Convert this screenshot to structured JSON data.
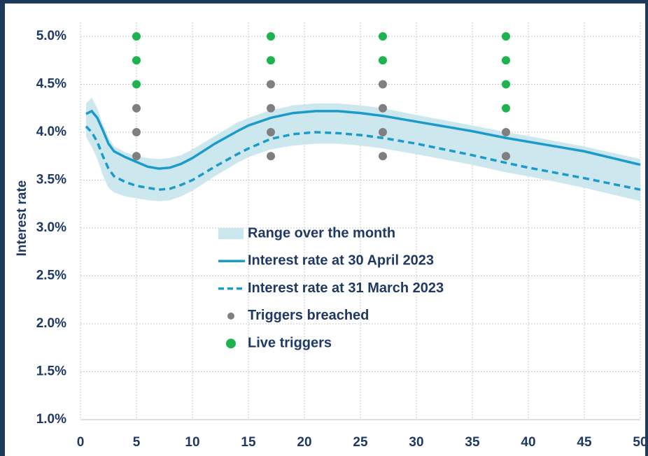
{
  "chart_data": {
    "type": "line",
    "y_label": "Interest rate",
    "xlim": [
      0,
      50
    ],
    "xticks": [
      0,
      5,
      10,
      15,
      20,
      25,
      30,
      35,
      40,
      45,
      50
    ],
    "ylim": [
      1.0,
      5.0
    ],
    "yticks": [
      {
        "value": 1.0,
        "label": "1.0%"
      },
      {
        "value": 1.5,
        "label": "1.5%"
      },
      {
        "value": 2.0,
        "label": "2.0%"
      },
      {
        "value": 2.5,
        "label": "2.5%"
      },
      {
        "value": 3.0,
        "label": "3.0%"
      },
      {
        "value": 3.5,
        "label": "3.5%"
      },
      {
        "value": 4.0,
        "label": "4.0%"
      },
      {
        "value": 4.5,
        "label": "4.5%"
      },
      {
        "value": 5.0,
        "label": "5.0%"
      }
    ],
    "grid": true,
    "x": [
      0.5,
      1,
      1.5,
      2,
      2.5,
      3,
      4,
      5,
      6,
      7,
      8,
      9,
      10,
      12,
      14,
      15,
      17,
      19,
      21,
      23,
      25,
      27,
      30,
      35,
      38,
      40,
      45,
      50
    ],
    "series": [
      {
        "name": "Range over the month",
        "type": "band",
        "color": "#cde7ef",
        "low": [
          3.95,
          3.85,
          3.72,
          3.55,
          3.42,
          3.37,
          3.33,
          3.31,
          3.29,
          3.28,
          3.29,
          3.33,
          3.39,
          3.54,
          3.68,
          3.74,
          3.82,
          3.86,
          3.88,
          3.88,
          3.86,
          3.83,
          3.77,
          3.66,
          3.58,
          3.54,
          3.42,
          3.28
        ],
        "high": [
          4.3,
          4.36,
          4.25,
          4.08,
          3.95,
          3.85,
          3.79,
          3.75,
          3.73,
          3.72,
          3.73,
          3.76,
          3.82,
          3.96,
          4.1,
          4.15,
          4.23,
          4.28,
          4.3,
          4.3,
          4.28,
          4.25,
          4.18,
          4.07,
          4.0,
          3.96,
          3.85,
          3.72
        ]
      },
      {
        "name": "Interest rate at 30 April 2023",
        "type": "line",
        "color": "#1a9bc9",
        "dashed": false,
        "values": [
          4.19,
          4.22,
          4.15,
          4.02,
          3.88,
          3.8,
          3.74,
          3.69,
          3.64,
          3.62,
          3.63,
          3.67,
          3.73,
          3.88,
          4.01,
          4.07,
          4.15,
          4.2,
          4.22,
          4.22,
          4.2,
          4.17,
          4.11,
          4.01,
          3.94,
          3.9,
          3.8,
          3.66
        ]
      },
      {
        "name": "Interest rate at 31 March 2023",
        "type": "line",
        "color": "#1a9bc9",
        "dashed": true,
        "values": [
          4.06,
          4.0,
          3.9,
          3.75,
          3.62,
          3.54,
          3.48,
          3.44,
          3.42,
          3.4,
          3.41,
          3.45,
          3.5,
          3.64,
          3.77,
          3.83,
          3.93,
          3.98,
          4.0,
          3.99,
          3.97,
          3.94,
          3.88,
          3.76,
          3.68,
          3.63,
          3.52,
          3.4
        ]
      },
      {
        "name": "Triggers breached",
        "type": "scatter",
        "color": "#7f7f7f",
        "x": [
          5,
          5,
          5,
          17,
          17,
          17,
          17,
          27,
          27,
          27,
          27,
          38,
          38
        ],
        "values": [
          4.25,
          4.0,
          3.75,
          4.5,
          4.25,
          4.0,
          3.75,
          4.5,
          4.25,
          4.0,
          3.75,
          4.0,
          3.75
        ]
      },
      {
        "name": "Live triggers",
        "type": "scatter",
        "color": "#1db34f",
        "x": [
          5,
          5,
          5,
          17,
          17,
          27,
          27,
          38,
          38,
          38,
          38
        ],
        "values": [
          5.0,
          4.75,
          4.5,
          5.0,
          4.75,
          5.0,
          4.75,
          5.0,
          4.75,
          4.5,
          4.25
        ]
      }
    ]
  }
}
